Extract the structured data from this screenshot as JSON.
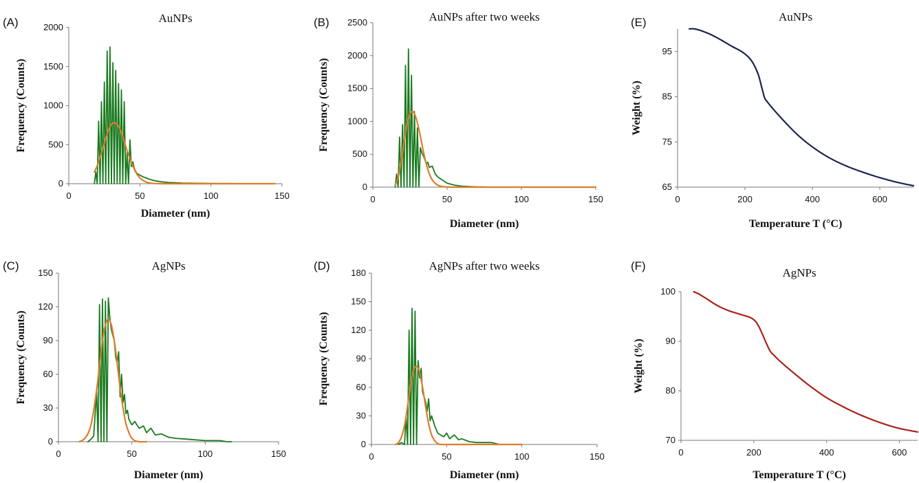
{
  "chart_data": [
    {
      "id": "A",
      "letter": "(A)",
      "type": "line",
      "title": "AuNPs",
      "xlabel": "Diameter (nm)",
      "ylabel": "Frequency (Counts)",
      "xlim": [
        0,
        150
      ],
      "ylim": [
        0,
        2000
      ],
      "xticks": [
        0,
        50,
        100,
        150
      ],
      "yticks": [
        0,
        500,
        1000,
        1500,
        2000
      ],
      "grid": false,
      "legend": "none",
      "series": [
        {
          "color": "#1a7a1f",
          "style": "histogram",
          "x": [
            18,
            19,
            20,
            21,
            22,
            23,
            24,
            25,
            26,
            27,
            28,
            29,
            30,
            31,
            32,
            33,
            34,
            35,
            36,
            37,
            38,
            39,
            40,
            41,
            42,
            43,
            44,
            45,
            46,
            47,
            48,
            50,
            52,
            55,
            58,
            60,
            65,
            70,
            80,
            90,
            100,
            110,
            120,
            130,
            140
          ],
          "y": [
            0,
            150,
            0,
            800,
            0,
            1050,
            0,
            1300,
            0,
            1700,
            0,
            1750,
            0,
            1550,
            0,
            1450,
            0,
            1280,
            0,
            1200,
            0,
            1050,
            0,
            400,
            0,
            560,
            220,
            280,
            200,
            160,
            130,
            110,
            90,
            70,
            50,
            40,
            25,
            15,
            8,
            5,
            3,
            2,
            1,
            0,
            0
          ]
        },
        {
          "color": "#e07b28",
          "style": "smooth",
          "x": [
            18,
            20,
            22,
            24,
            26,
            28,
            30,
            32,
            34,
            36,
            38,
            40,
            42,
            44,
            46,
            48,
            50,
            52,
            54,
            56,
            58,
            60,
            65,
            70,
            80,
            100,
            120,
            145
          ],
          "y": [
            150,
            230,
            340,
            460,
            580,
            690,
            760,
            780,
            760,
            700,
            600,
            480,
            370,
            270,
            190,
            120,
            75,
            45,
            25,
            12,
            6,
            3,
            0,
            0,
            0,
            0,
            0,
            0
          ]
        }
      ]
    },
    {
      "id": "B",
      "letter": "(B)",
      "type": "line",
      "title": "AuNPs after two weeks",
      "xlabel": "Diameter (nm)",
      "ylabel": "Frequency (Counts)",
      "xlim": [
        0,
        150
      ],
      "ylim": [
        0,
        2500
      ],
      "xticks": [
        0,
        50,
        100,
        150
      ],
      "yticks": [
        0,
        500,
        1000,
        1500,
        2000,
        2500
      ],
      "grid": false,
      "legend": "none",
      "series": [
        {
          "color": "#1a7a1f",
          "style": "histogram",
          "x": [
            15,
            16,
            17,
            18,
            19,
            20,
            21,
            22,
            23,
            24,
            25,
            26,
            27,
            28,
            29,
            30,
            31,
            32,
            33,
            34,
            35,
            36,
            37,
            38,
            40,
            42,
            44,
            46,
            48,
            50,
            55,
            60,
            65,
            70,
            75,
            80,
            100,
            150
          ],
          "y": [
            0,
            200,
            0,
            760,
            0,
            950,
            0,
            1850,
            0,
            2100,
            0,
            1700,
            0,
            1150,
            0,
            900,
            0,
            600,
            520,
            480,
            420,
            350,
            380,
            300,
            320,
            200,
            150,
            120,
            90,
            60,
            30,
            15,
            8,
            4,
            2,
            0,
            0,
            0
          ]
        },
        {
          "color": "#e07b28",
          "style": "smooth",
          "x": [
            15,
            17,
            19,
            21,
            23,
            25,
            27,
            29,
            31,
            33,
            35,
            37,
            39,
            41,
            43,
            45,
            47,
            50,
            55,
            60,
            70,
            100,
            150
          ],
          "y": [
            30,
            150,
            380,
            680,
            950,
            1110,
            1150,
            1060,
            880,
            660,
            440,
            270,
            150,
            80,
            40,
            18,
            8,
            2,
            0,
            0,
            0,
            0,
            0
          ]
        }
      ]
    },
    {
      "id": "E",
      "letter": "(E)",
      "type": "line",
      "title": "AuNPs",
      "xlabel": "Temperature T (°C)",
      "ylabel": "Weight (%)",
      "xlim": [
        0,
        700
      ],
      "ylim": [
        65,
        100
      ],
      "xticks": [
        0,
        200,
        400,
        600
      ],
      "yticks": [
        65,
        75,
        85,
        95
      ],
      "grid": false,
      "legend": "none",
      "series": [
        {
          "color": "#1c2353",
          "style": "smooth",
          "x": [
            35,
            50,
            70,
            100,
            130,
            160,
            190,
            210,
            225,
            240,
            250,
            258,
            265,
            280,
            300,
            330,
            360,
            400,
            450,
            500,
            550,
            600,
            650,
            700
          ],
          "y": [
            100,
            100,
            99.6,
            98.7,
            97.5,
            96.2,
            95,
            93.8,
            92.3,
            89.8,
            87,
            84.8,
            84,
            82.6,
            80.9,
            78.5,
            76.3,
            73.9,
            71.5,
            69.7,
            68.3,
            67.1,
            66.1,
            65.3
          ]
        }
      ]
    },
    {
      "id": "C",
      "letter": "(C)",
      "type": "line",
      "title": "AgNPs",
      "xlabel": "Diameter (nm)",
      "ylabel": "Frequency (Counts)",
      "xlim": [
        0,
        150
      ],
      "ylim": [
        0,
        150
      ],
      "xticks": [
        0,
        50,
        100,
        150
      ],
      "yticks": [
        0,
        30,
        60,
        90,
        120,
        150
      ],
      "grid": false,
      "legend": "none",
      "series": [
        {
          "color": "#1a7a1f",
          "style": "histogram",
          "x": [
            20,
            22,
            24,
            26,
            27,
            28,
            29,
            30,
            31,
            32,
            33,
            34,
            35,
            36,
            37,
            38,
            39,
            40,
            41,
            42,
            43,
            44,
            45,
            46,
            47,
            48,
            50,
            52,
            55,
            58,
            60,
            63,
            66,
            70,
            75,
            80,
            90,
            100,
            110,
            115,
            118
          ],
          "y": [
            0,
            2,
            5,
            45,
            0,
            122,
            0,
            127,
            0,
            125,
            0,
            128,
            110,
            100,
            95,
            90,
            75,
            70,
            80,
            40,
            60,
            35,
            42,
            25,
            28,
            20,
            15,
            18,
            12,
            14,
            8,
            12,
            6,
            7,
            4,
            3,
            2,
            1,
            1,
            0,
            0
          ]
        },
        {
          "color": "#e07b28",
          "style": "smooth",
          "x": [
            14,
            16,
            18,
            20,
            22,
            24,
            26,
            28,
            30,
            32,
            34,
            36,
            38,
            40,
            42,
            44,
            46,
            48,
            50,
            52,
            55,
            60
          ],
          "y": [
            0,
            1,
            3,
            7,
            14,
            28,
            46,
            68,
            90,
            104,
            109,
            104,
            90,
            70,
            48,
            30,
            16,
            8,
            3,
            1,
            0,
            0
          ]
        }
      ]
    },
    {
      "id": "D",
      "letter": "(D)",
      "type": "line",
      "title": "AgNPs after two weeks",
      "xlabel": "Diameter (nm)",
      "ylabel": "Frequency (Counts)",
      "xlim": [
        0,
        150
      ],
      "ylim": [
        0,
        180
      ],
      "xticks": [
        0,
        50,
        100,
        150
      ],
      "yticks": [
        0,
        30,
        60,
        90,
        120,
        150,
        180
      ],
      "grid": false,
      "legend": "none",
      "series": [
        {
          "color": "#1a7a1f",
          "style": "histogram",
          "x": [
            18,
            20,
            22,
            23,
            24,
            25,
            26,
            27,
            28,
            29,
            30,
            31,
            32,
            33,
            34,
            35,
            36,
            37,
            38,
            39,
            40,
            42,
            44,
            46,
            48,
            50,
            52,
            55,
            58,
            60,
            65,
            70,
            80,
            85
          ],
          "y": [
            0,
            2,
            0,
            30,
            0,
            120,
            0,
            143,
            0,
            140,
            0,
            88,
            70,
            80,
            55,
            50,
            45,
            35,
            48,
            25,
            30,
            20,
            12,
            10,
            8,
            12,
            6,
            10,
            5,
            6,
            3,
            2,
            2,
            0
          ]
        },
        {
          "color": "#e07b28",
          "style": "smooth",
          "x": [
            16,
            18,
            20,
            22,
            24,
            26,
            28,
            30,
            32,
            34,
            36,
            38,
            40,
            42,
            44,
            46,
            50,
            60,
            80,
            100
          ],
          "y": [
            0,
            2,
            8,
            20,
            40,
            62,
            78,
            82,
            76,
            60,
            40,
            22,
            10,
            4,
            1,
            0,
            0,
            0,
            0,
            0
          ]
        }
      ]
    },
    {
      "id": "F",
      "letter": "(F)",
      "type": "line",
      "title": "AgNPs",
      "xlabel": "Temperature T (°C)",
      "ylabel": "Weight (%)",
      "xlim": [
        0,
        650
      ],
      "ylim": [
        70,
        100
      ],
      "xticks": [
        0,
        200,
        400,
        600
      ],
      "yticks": [
        70,
        80,
        90,
        100
      ],
      "grid": false,
      "legend": "none",
      "series": [
        {
          "color": "#a8231b",
          "style": "smooth",
          "x": [
            35,
            50,
            70,
            100,
            130,
            160,
            190,
            205,
            215,
            225,
            235,
            245,
            255,
            270,
            300,
            350,
            400,
            450,
            500,
            550,
            600,
            650
          ],
          "y": [
            100,
            99.5,
            98.6,
            97.2,
            96.2,
            95.5,
            94.8,
            94,
            92.8,
            91.2,
            89.5,
            88,
            87.2,
            86.1,
            84.2,
            81.2,
            78.6,
            76.6,
            74.9,
            73.5,
            72.4,
            71.7
          ]
        }
      ]
    }
  ]
}
